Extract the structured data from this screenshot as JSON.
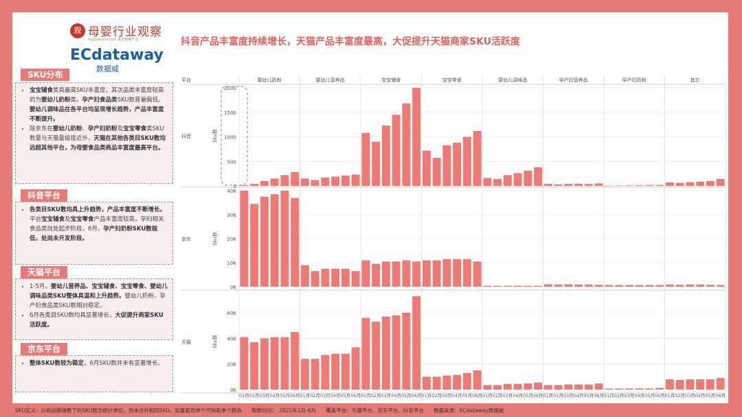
{
  "logos": {
    "mybrand": "母婴行业观察",
    "mybrand_sub": "myguancha.com 看见母婴产业",
    "ec_brand": "ECdataway",
    "ec_sub": "数据威"
  },
  "headline": "抖音产品丰富度持续增长，天猫产品丰富度最高，大促提升天猫商家SKU活跃度",
  "sections": [
    {
      "title": "SKU分布",
      "bullets": [
        [
          {
            "t": "宝宝辅食",
            "b": true
          },
          {
            "t": "类具最高SKU丰富度，其次品类丰富度较高的为",
            "b": false
          },
          {
            "t": "婴幼儿奶粉",
            "b": true
          },
          {
            "t": "类。",
            "b": false
          },
          {
            "t": "孕产妇食品类",
            "b": true
          },
          {
            "t": "SKU数普遍偏低。",
            "b": false
          },
          {
            "t": "婴幼儿调味品在各平台均呈现增长趋势，产品丰富度不断提升。",
            "b": true
          }
        ],
        [
          {
            "t": "除京东在",
            "b": false
          },
          {
            "t": "婴幼儿奶粉",
            "b": true
          },
          {
            "t": "、",
            "b": false
          },
          {
            "t": "孕产妇奶粉",
            "b": true
          },
          {
            "t": "及",
            "b": false
          },
          {
            "t": "宝宝零食",
            "b": true
          },
          {
            "t": "类SKU数量与天猫量级接近外，",
            "b": false
          },
          {
            "t": "天猫在其他各类目SKU数均远超其他平台，为母婴食品类商品丰富度最高平台。",
            "b": true
          }
        ]
      ]
    },
    {
      "title": "抖音平台",
      "bullets": [
        [
          {
            "t": "各类目SKU数均具上升趋势，产品丰富度不断增长。",
            "b": true
          },
          {
            "t": "平台",
            "b": false
          },
          {
            "t": "宝宝辅食",
            "b": true
          },
          {
            "t": "及",
            "b": false
          },
          {
            "t": "宝宝零食",
            "b": true
          },
          {
            "t": "产品丰富度较高，孕妇相关食品类尚处起步阶段，6月，",
            "b": false
          },
          {
            "t": "孕产妇奶粉SKU数极低，处尚未开发阶段。",
            "b": true
          }
        ]
      ]
    },
    {
      "title": "天猫平台",
      "bullets": [
        [
          {
            "t": "1-5月，",
            "b": false
          },
          {
            "t": "婴幼儿营养品、宝宝辅食、宝宝零食、婴幼儿调味品类SKU整体具温和上升趋势。",
            "b": true
          },
          {
            "t": "婴幼儿奶粉、孕产妇食品类SKU数相对稳定。",
            "b": false
          }
        ],
        [
          {
            "t": "6月各类目SKU数均具显著增长，",
            "b": false
          },
          {
            "t": "大促提升商家SKU活跃度。",
            "b": true
          }
        ]
      ]
    },
    {
      "title": "京东平台",
      "bullets": [
        [
          {
            "t": "整体SKU数较为稳定",
            "b": true
          },
          {
            "t": "，6月SKU数并未有显著增长。",
            "b": false
          }
        ]
      ]
    }
  ],
  "footer": {
    "definition": "SKU定义：以商品链接数下的SKU数为统计单位，但未合并相同SKU，如重复到单个尺码和单个颜色",
    "time": "取数时间： 2021年1月-6月",
    "coverage": "覆盖平台：天猫平台、京东平台、抖音平台",
    "source": "数据来源：ECdataway数据威"
  },
  "colors": {
    "bar": "#ef7a74",
    "accent": "#e87a76",
    "headline": "#e2605b",
    "grid": "#e3e3e3",
    "dashed_box": "#999999"
  },
  "chart_data": {
    "type": "bar",
    "layout": "small-multiples",
    "header_label": "平台",
    "categories": [
      "婴幼儿奶粉",
      "婴幼儿营养品",
      "宝宝辅食",
      "宝宝零食",
      "婴幼儿调味品",
      "孕产妇营养品",
      "孕产妇奶粉",
      "其它"
    ],
    "months": [
      "01月",
      "02月",
      "03月",
      "04月",
      "05月",
      "06月"
    ],
    "ylabel": "Sku数",
    "grid": true,
    "rows": [
      {
        "platform": "抖音",
        "ylim": [
          0,
          2000
        ],
        "ticks": [
          0,
          500,
          1000,
          1500,
          2000
        ],
        "tick_labels": [
          "0",
          "500",
          "1000",
          "1500",
          "2000"
        ],
        "values": [
          [
            15,
            40,
            100,
            150,
            220,
            280
          ],
          [
            150,
            120,
            170,
            190,
            210,
            230
          ],
          [
            1080,
            900,
            1230,
            1450,
            1680,
            2000
          ],
          [
            720,
            570,
            830,
            880,
            1000,
            1120
          ],
          [
            160,
            140,
            220,
            260,
            310,
            380
          ],
          [
            40,
            30,
            40,
            45,
            40,
            50
          ],
          [
            5,
            8,
            12,
            15,
            18,
            20
          ],
          [
            70,
            60,
            75,
            85,
            100,
            140
          ]
        ]
      },
      {
        "platform": "京东",
        "ylim": [
          0,
          40000
        ],
        "ticks": [
          0,
          10000,
          20000,
          30000,
          40000
        ],
        "tick_labels": [
          "0K",
          "10K",
          "20K",
          "30K",
          "40K"
        ],
        "values": [
          [
            40000,
            34500,
            37500,
            38500,
            40000,
            37000
          ],
          [
            9000,
            6500,
            7500,
            7500,
            7500,
            6500
          ],
          [
            11000,
            9500,
            10500,
            10500,
            11000,
            10500
          ],
          [
            11000,
            11000,
            11500,
            11500,
            11500,
            10500
          ],
          [
            400,
            400,
            400,
            400,
            400,
            400
          ],
          [
            1000,
            900,
            1000,
            900,
            900,
            800
          ],
          [
            700,
            700,
            700,
            700,
            700,
            700
          ],
          [
            900,
            800,
            900,
            900,
            800,
            700
          ]
        ]
      },
      {
        "platform": "天猫",
        "ylim": [
          0,
          75000
        ],
        "ticks": [
          0,
          20000,
          40000,
          60000
        ],
        "tick_labels": [
          "0K",
          "20K",
          "40K",
          "60K"
        ],
        "values": [
          [
            41000,
            37000,
            40000,
            41000,
            41000,
            45000
          ],
          [
            24000,
            24000,
            27000,
            28000,
            28000,
            33000
          ],
          [
            56000,
            53000,
            57000,
            58000,
            60000,
            73000
          ],
          [
            10000,
            10000,
            11000,
            11500,
            13000,
            15000
          ],
          [
            3500,
            3500,
            4500,
            4500,
            4800,
            5500
          ],
          [
            3500,
            3500,
            4000,
            4000,
            4000,
            4800
          ],
          [
            800,
            800,
            900,
            900,
            900,
            1300
          ],
          [
            8000,
            7500,
            8000,
            8000,
            8000,
            9000
          ]
        ]
      }
    ]
  }
}
